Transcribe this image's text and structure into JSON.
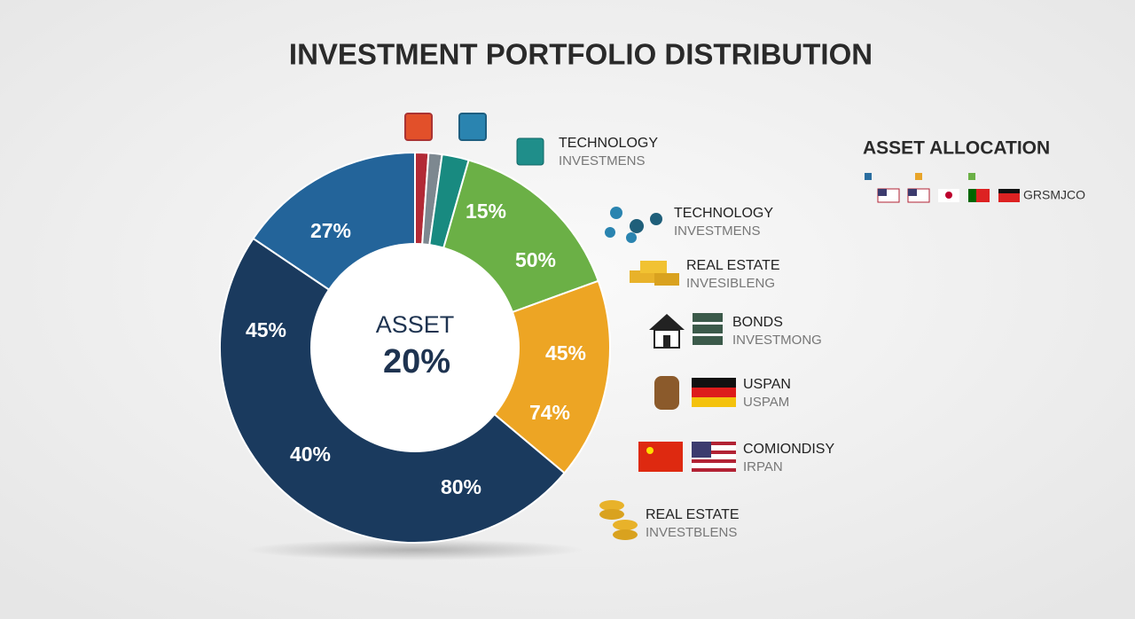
{
  "header": {
    "title": "INVESTMENT PORTFOLIO DISTRIBUTION"
  },
  "donut": {
    "center_label": "ASSET",
    "center_value": "20%",
    "slice_labels": [
      "27%",
      "15%",
      "50%",
      "45%",
      "74%",
      "80%",
      "40%",
      "45%"
    ]
  },
  "legend_items": [
    {
      "title": "TECHNOLOGY",
      "subtitle": "INVESTMENS"
    },
    {
      "title": "TECHNOLOGY",
      "subtitle": "INVESTMENS"
    },
    {
      "title": "REAL ESTATE",
      "subtitle": "INVESIBLENG"
    },
    {
      "title": "BONDS",
      "subtitle": "INVESTMONG"
    },
    {
      "title": "USPAN",
      "subtitle": "USPAM"
    },
    {
      "title": "COMIONDISY",
      "subtitle": "IRPAN"
    },
    {
      "title": "REAL ESTATE",
      "subtitle": "INVESTBLENS"
    }
  ],
  "allocation": {
    "title": "ASSET ALLOCATION",
    "code": "GRSMJCO"
  }
}
